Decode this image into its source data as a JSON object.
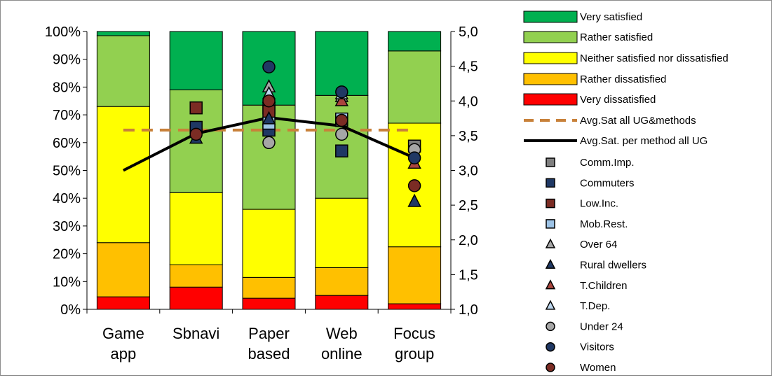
{
  "chart_data": {
    "type": "bar",
    "subtype": "stacked-100%-bar-with-overlay-lines-and-markers",
    "categories": [
      [
        "Game",
        "app"
      ],
      [
        "Sbnavi"
      ],
      [
        "Paper",
        "based"
      ],
      [
        "Web",
        "online"
      ],
      [
        "Focus",
        "group"
      ]
    ],
    "y_left": {
      "range": [
        0,
        100
      ],
      "ticks": [
        "0%",
        "10%",
        "20%",
        "30%",
        "40%",
        "50%",
        "60%",
        "70%",
        "80%",
        "90%",
        "100%"
      ]
    },
    "y_right": {
      "range": [
        1.0,
        5.0
      ],
      "ticks": [
        "1,0",
        "1,5",
        "2,0",
        "2,5",
        "3,0",
        "3,5",
        "4,0",
        "4,5",
        "5,0"
      ]
    },
    "grid": false,
    "legend_position": "right",
    "series": [
      {
        "name": "Very dissatisfied",
        "color": "#ff0000",
        "values": [
          4.5,
          8,
          4,
          5,
          2
        ]
      },
      {
        "name": "Rather dissatisfied",
        "color": "#ffc000",
        "values": [
          19.5,
          8,
          7.5,
          10,
          20.5
        ]
      },
      {
        "name": "Neither satisfied nor dissatisfied",
        "color": "#ffff00",
        "values": [
          49,
          26,
          24.5,
          25,
          44.5
        ]
      },
      {
        "name": "Rather satisfied",
        "color": "#92d050",
        "values": [
          25.5,
          37,
          37.5,
          37,
          26
        ]
      },
      {
        "name": "Very satisfied",
        "color": "#00b050",
        "values": [
          1.5,
          21,
          26.5,
          23,
          7
        ]
      }
    ],
    "lines": [
      {
        "name": "Avg.Sat all UG&methods",
        "style": "dashed",
        "color": "#c8813a",
        "value": 3.58
      },
      {
        "name": "Avg.Sat. per method all UG",
        "style": "solid",
        "color": "#000000",
        "values": [
          3.0,
          3.53,
          3.76,
          3.64,
          3.18
        ]
      }
    ],
    "markers": [
      {
        "name": "Comm.Imp.",
        "shape": "square",
        "color": "#7f7f7f",
        "values": [
          null,
          null,
          3.9,
          3.72,
          3.35
        ]
      },
      {
        "name": "Commuters",
        "shape": "square",
        "color": "#1f3864",
        "values": [
          null,
          3.62,
          3.58,
          3.28,
          null
        ]
      },
      {
        "name": "Low.Inc.",
        "shape": "square",
        "color": "#7b2c24",
        "values": [
          null,
          3.9,
          3.85,
          null,
          null
        ]
      },
      {
        "name": "Mob.Rest.",
        "shape": "square",
        "color": "#9dc3e6",
        "values": [
          null,
          null,
          3.68,
          3.74,
          null
        ]
      },
      {
        "name": "Over 64",
        "shape": "triangle",
        "color": "#a6a6a6",
        "values": [
          null,
          null,
          4.2,
          4.06,
          null
        ]
      },
      {
        "name": "Rural dwellers",
        "shape": "triangle",
        "color": "#1f3864",
        "values": [
          null,
          3.46,
          3.74,
          null,
          2.55
        ]
      },
      {
        "name": "T.Children",
        "shape": "triangle",
        "color": "#a9453d",
        "values": [
          null,
          null,
          4.05,
          4.0,
          3.1
        ]
      },
      {
        "name": "T.Dep.",
        "shape": "triangle",
        "color": "#bdd7ee",
        "values": [
          null,
          null,
          4.1,
          4.1,
          null
        ]
      },
      {
        "name": "Under 24",
        "shape": "circle",
        "color": "#a6a6a6",
        "values": [
          null,
          null,
          3.4,
          3.52,
          3.3
        ]
      },
      {
        "name": "Visitors",
        "shape": "circle",
        "color": "#203864",
        "values": [
          null,
          null,
          4.49,
          4.13,
          3.18
        ]
      },
      {
        "name": "Women",
        "shape": "circle",
        "color": "#7b2c24",
        "values": [
          null,
          3.52,
          4.0,
          3.72,
          2.78
        ]
      }
    ]
  }
}
